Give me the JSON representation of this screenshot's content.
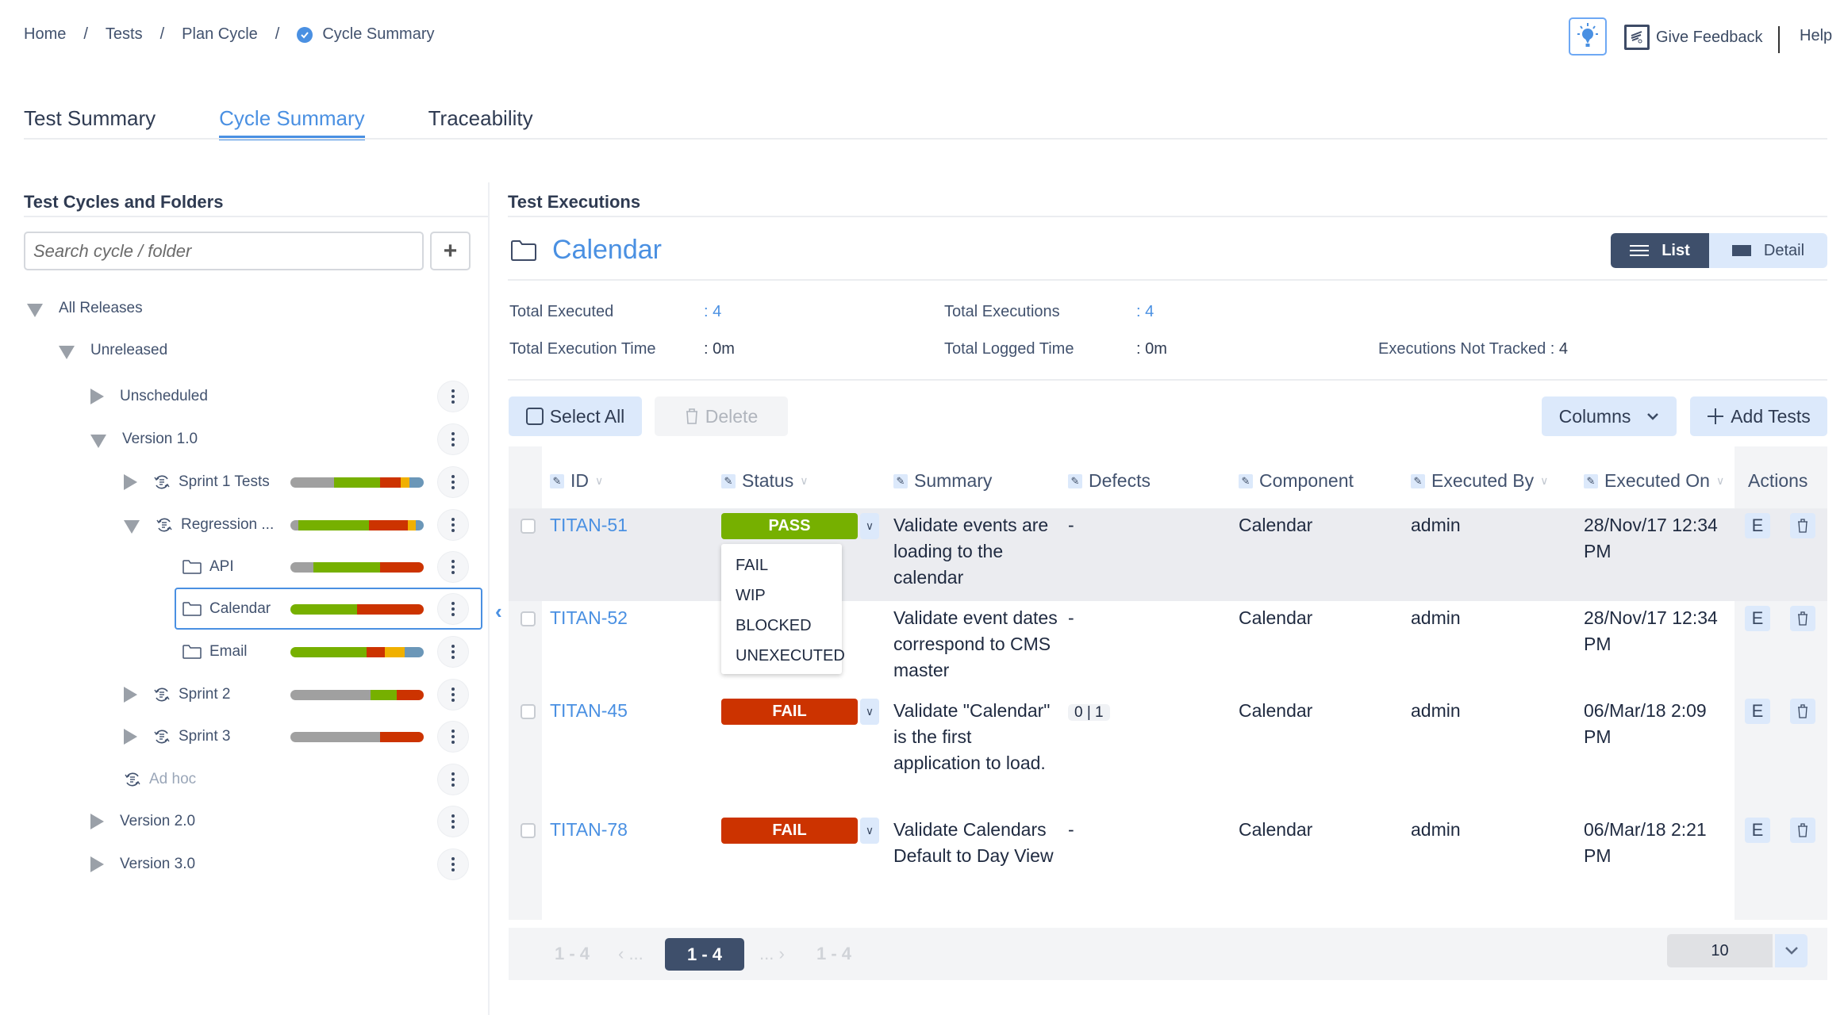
{
  "breadcrumb": [
    "Home",
    "Tests",
    "Plan Cycle",
    "Cycle Summary"
  ],
  "header": {
    "feedback_label": "Give Feedback",
    "help_label": "Help"
  },
  "tabs": [
    {
      "label": "Test Summary",
      "active": false
    },
    {
      "label": "Cycle Summary",
      "active": true
    },
    {
      "label": "Traceability",
      "active": false
    }
  ],
  "left_panel": {
    "title": "Test Cycles and Folders",
    "search_placeholder": "Search cycle / folder",
    "add_label": "+",
    "tree": [
      {
        "label": "All Releases",
        "level": 0,
        "expander": "down"
      },
      {
        "label": "Unreleased",
        "level": 1,
        "expander": "down"
      },
      {
        "label": "Unscheduled",
        "level": 2,
        "expander": "right"
      },
      {
        "label": "Version 1.0",
        "level": 2,
        "expander": "down"
      },
      {
        "label": "Sprint 1 Tests",
        "level": 3,
        "expander": "right",
        "type": "cycle",
        "progress": [
          [
            "#a0a0a0",
            33
          ],
          [
            "#76b000",
            34
          ],
          [
            "#cc3300",
            16
          ],
          [
            "#f0b000",
            6
          ],
          [
            "#6b97b8",
            11
          ]
        ]
      },
      {
        "label": "Regression ...",
        "level": 3,
        "expander": "down",
        "type": "cycle",
        "progress": [
          [
            "#a0a0a0",
            6
          ],
          [
            "#76b000",
            53
          ],
          [
            "#cc3300",
            29
          ],
          [
            "#f0b000",
            6
          ],
          [
            "#6b97b8",
            6
          ]
        ]
      },
      {
        "label": "API",
        "level": 4,
        "type": "folder",
        "progress": [
          [
            "#a0a0a0",
            17
          ],
          [
            "#76b000",
            50
          ],
          [
            "#cc3300",
            33
          ]
        ]
      },
      {
        "label": "Calendar",
        "level": 4,
        "type": "folder",
        "selected": true,
        "progress": [
          [
            "#76b000",
            50
          ],
          [
            "#cc3300",
            50
          ]
        ]
      },
      {
        "label": "Email",
        "level": 4,
        "type": "folder",
        "progress": [
          [
            "#76b000",
            57
          ],
          [
            "#cc3300",
            14
          ],
          [
            "#f0b000",
            15
          ],
          [
            "#6b97b8",
            14
          ]
        ]
      },
      {
        "label": "Sprint 2",
        "level": 3,
        "expander": "right",
        "type": "cycle",
        "progress": [
          [
            "#a0a0a0",
            60
          ],
          [
            "#76b000",
            20
          ],
          [
            "#cc3300",
            20
          ]
        ]
      },
      {
        "label": "Sprint 3",
        "level": 3,
        "expander": "right",
        "type": "cycle",
        "progress": [
          [
            "#a0a0a0",
            67
          ],
          [
            "#cc3300",
            33
          ]
        ]
      },
      {
        "label": "Ad hoc",
        "level": 3,
        "type": "cycle",
        "muted": true
      },
      {
        "label": "Version 2.0",
        "level": 2,
        "expander": "right"
      },
      {
        "label": "Version 3.0",
        "level": 2,
        "expander": "right"
      }
    ]
  },
  "main": {
    "title": "Test Executions",
    "folder_name": "Calendar",
    "view_toggle": {
      "list": "List",
      "detail": "Detail"
    },
    "stats": {
      "total_executed_label": "Total Executed",
      "total_executed": ": 4",
      "total_executions_label": "Total Executions",
      "total_executions": ": 4",
      "total_execution_time_label": "Total Execution Time",
      "total_execution_time": ": 0m",
      "total_logged_time_label": "Total Logged Time",
      "total_logged_time": ": 0m",
      "not_tracked_label": "Executions Not Tracked :",
      "not_tracked": "4"
    },
    "toolbar": {
      "select_all": "Select All",
      "delete": "Delete",
      "columns": "Columns",
      "add_tests": "Add Tests"
    },
    "columns": [
      "ID",
      "Status",
      "Summary",
      "Defects",
      "Component",
      "Executed By",
      "Executed On",
      "Actions"
    ],
    "rows": [
      {
        "id": "TITAN-51",
        "status": "PASS",
        "status_color": "#76b000",
        "summary": "Validate events are loading to the calendar",
        "defects": "-",
        "component": "Calendar",
        "executed_by": "admin",
        "executed_on": "28/Nov/17 12:34 PM",
        "edit": "E"
      },
      {
        "id": "TITAN-52",
        "status": "",
        "status_color": "",
        "summary": "Validate event dates correspond to CMS master",
        "defects": "-",
        "component": "Calendar",
        "executed_by": "admin",
        "executed_on": "28/Nov/17 12:34 PM",
        "edit": "E"
      },
      {
        "id": "TITAN-45",
        "status": "FAIL",
        "status_color": "#cc3300",
        "summary": "Validate \"Calendar\" is the first application to load.",
        "defects": "0 | 1",
        "component": "Calendar",
        "executed_by": "admin",
        "executed_on": "06/Mar/18 2:09 PM",
        "edit": "E"
      },
      {
        "id": "TITAN-78",
        "status": "FAIL",
        "status_color": "#cc3300",
        "summary": "Validate Calendars Default to Day View",
        "defects": "-",
        "component": "Calendar",
        "executed_by": "admin",
        "executed_on": "06/Mar/18 2:21 PM",
        "edit": "E"
      }
    ],
    "status_dropdown": [
      "FAIL",
      "WIP",
      "BLOCKED",
      "UNEXECUTED"
    ],
    "pagination": {
      "first": "1 - 4",
      "prev": "‹ ...",
      "current": "1 - 4",
      "next": "... ›",
      "last": "1 - 4",
      "per_page": "10"
    }
  }
}
